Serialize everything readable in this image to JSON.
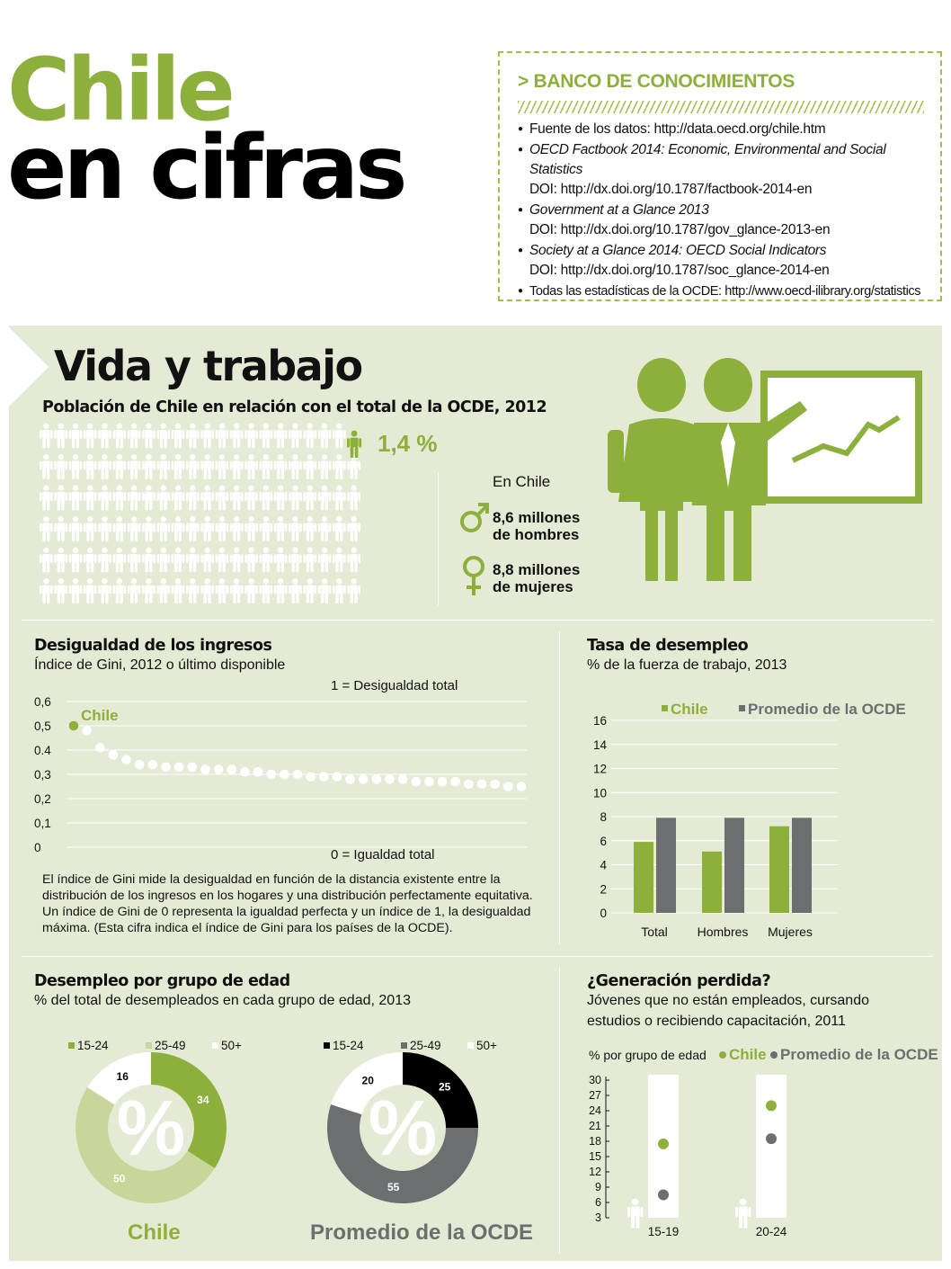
{
  "title": {
    "line1": "Chile",
    "line2": "en cifras"
  },
  "bank": {
    "heading": "> BANCO DE CONOCIMIENTOS",
    "items": [
      {
        "lines": [
          "Fuente de los datos: http://data.oecd.org/chile.htm"
        ]
      },
      {
        "italic": "OECD Factbook 2014: Economic, Environmental and Social Statistics",
        "lines": [
          "DOI: http://dx.doi.org/10.1787/factbook-2014-en"
        ]
      },
      {
        "italic": "Government at a Glance 2013",
        "lines": [
          "DOI: http://dx.doi.org/10.1787/gov_glance-2013-en"
        ]
      },
      {
        "italic": "Society at a Glance 2014: OECD Social Indicators",
        "lines": [
          "DOI: http://dx.doi.org/10.1787/soc_glance-2014-en"
        ]
      },
      {
        "lines": [
          "Todas las estadísticas de la OCDE: http://www.oecd-ilibrary.org/statistics"
        ]
      }
    ]
  },
  "section_title": "Vida y trabajo",
  "population": {
    "heading": "Población de Chile en relación con el total de la OCDE, 2012",
    "share": "1,4 %",
    "in_chile": "En Chile",
    "men_line1": "8,6 millones",
    "men_line2": "de hombres",
    "women_line1": "8,8 millones",
    "women_line2": "de mujeres"
  },
  "colors": {
    "chile": "#8db03c",
    "oecd": "#6d6e70",
    "light": "#c8d69a",
    "black": "#000000",
    "white": "#ffffff"
  },
  "gini": {
    "heading": "Desigualdad de los ingresos",
    "subtitle": "Índice de Gini, 2012 o último disponible",
    "top_note": "1 = Desigualdad total",
    "bottom_note": "0 = Igualdad total",
    "chile_label": "Chile",
    "description": "El índice de Gini mide la desigualdad en función de la distancia existente entre la distribución de los ingresos en los hogares y una distribución perfectamente equitativa. Un índice de Gini de 0 representa la igualdad perfecta y un índice de 1, la desigualdad máxima. (Esta cifra indica el índice de Gini para los países de la OCDE)."
  },
  "unemp": {
    "heading": "Tasa de desempleo",
    "subtitle": "% de la fuerza de trabajo, 2013"
  },
  "agegroup": {
    "heading": "Desempleo por grupo de edad",
    "subtitle": "% del total de desempleados en cada grupo de edad, 2013",
    "legend": [
      "15-24",
      "25-49",
      "50+"
    ],
    "chile_title": "Chile",
    "oecd_title": "Promedio de la OCDE"
  },
  "neet": {
    "heading": "¿Generación perdida?",
    "subtitle_line1": "Jóvenes que no están empleados, cursando",
    "subtitle_line2": "estudios o recibiendo capacitación, 2011",
    "axis_label": "% por grupo de edad"
  },
  "chart_data": [
    {
      "type": "scatter",
      "title": "Desigualdad de los ingresos",
      "ytick_labels": [
        "0",
        "0,1",
        "0,2",
        "0,3",
        "0.4",
        "0,5",
        "0,6"
      ],
      "ylim": [
        0,
        0.6
      ],
      "highlight": {
        "name": "Chile",
        "value": 0.5
      },
      "values": [
        0.5,
        0.48,
        0.41,
        0.38,
        0.36,
        0.34,
        0.34,
        0.33,
        0.33,
        0.33,
        0.32,
        0.32,
        0.32,
        0.31,
        0.31,
        0.3,
        0.3,
        0.3,
        0.29,
        0.29,
        0.29,
        0.28,
        0.28,
        0.28,
        0.28,
        0.28,
        0.27,
        0.27,
        0.27,
        0.27,
        0.26,
        0.26,
        0.26,
        0.25,
        0.25
      ]
    },
    {
      "type": "bar",
      "title": "Tasa de desempleo",
      "categories": [
        "Total",
        "Hombres",
        "Mujeres"
      ],
      "series": [
        {
          "name": "Chile",
          "values": [
            5.9,
            5.1,
            7.2
          ]
        },
        {
          "name": "Promedio de la OCDE",
          "values": [
            7.9,
            7.9,
            7.9
          ]
        }
      ],
      "ylim": [
        0,
        16
      ],
      "yticks": [
        0,
        2,
        4,
        6,
        8,
        10,
        12,
        14,
        16
      ]
    },
    {
      "type": "pie",
      "title": "Chile",
      "labels": [
        "15-24",
        "25-49",
        "50+"
      ],
      "values": [
        34,
        50,
        16
      ]
    },
    {
      "type": "pie",
      "title": "Promedio de la OCDE",
      "labels": [
        "15-24",
        "25-49",
        "50+"
      ],
      "values": [
        25,
        55,
        20
      ]
    },
    {
      "type": "scatter",
      "title": "¿Generación perdida?",
      "categories": [
        "15-19",
        "20-24"
      ],
      "series": [
        {
          "name": "Chile",
          "values": [
            17.5,
            25
          ]
        },
        {
          "name": "Promedio de la OCDE",
          "values": [
            7.5,
            18.5
          ]
        }
      ],
      "ylim": [
        3,
        30
      ],
      "yticks": [
        3,
        6,
        9,
        12,
        15,
        18,
        21,
        24,
        27,
        30
      ]
    }
  ]
}
